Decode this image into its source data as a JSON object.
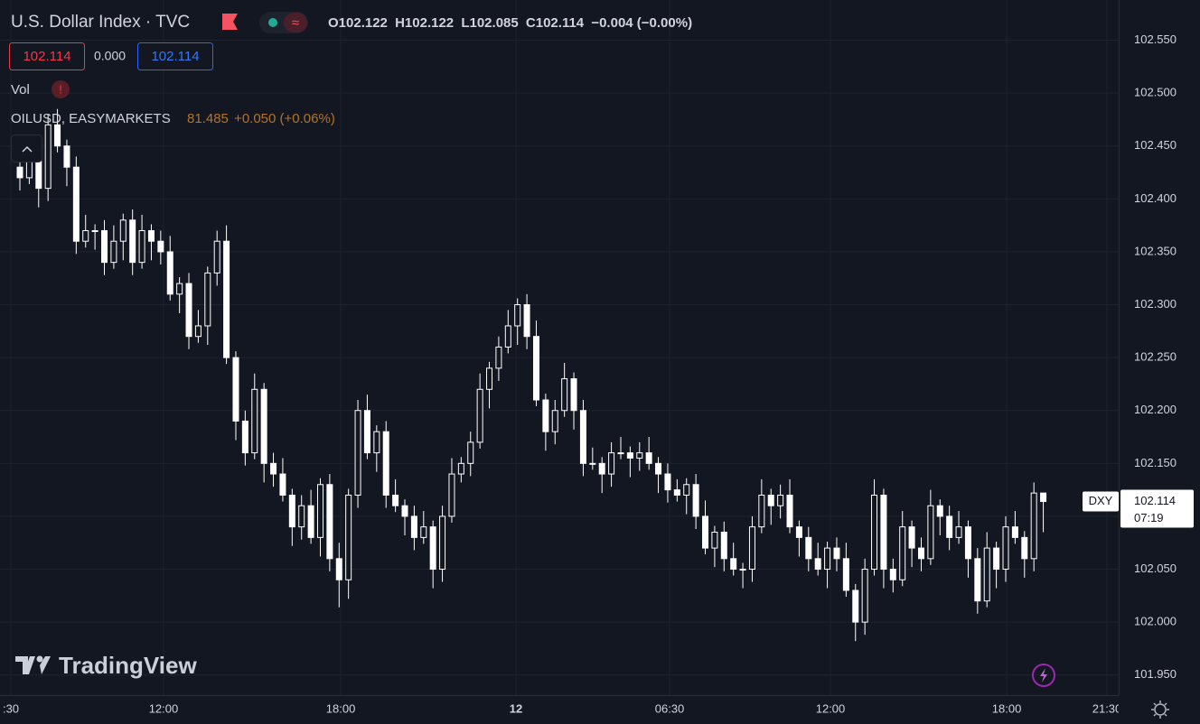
{
  "header": {
    "title": "U.S. Dollar Index · TVC",
    "ohlc_labels": [
      "O",
      "H",
      "L",
      "C"
    ],
    "change": "−0.004 (−0.00%)",
    "spread": "0.000",
    "vol_label": "Vol",
    "overlay_symbol": "OILUSD, EASYMARKETS",
    "overlay_price": "81.485",
    "overlay_change": "+0.050 (+0.06%)",
    "symbol_tag": "DXY",
    "countdown": "07:19",
    "watermark": "TradingView"
  },
  "chart_data": {
    "type": "candlestick",
    "open": [
      102.43,
      102.42,
      102.44,
      102.41,
      102.47,
      102.45,
      102.43,
      102.36,
      102.37,
      102.37,
      102.34,
      102.36,
      102.38,
      102.34,
      102.37,
      102.36,
      102.35,
      102.31,
      102.32,
      102.27,
      102.28,
      102.33,
      102.36,
      102.25,
      102.19,
      102.16,
      102.22,
      102.15,
      102.14,
      102.12,
      102.09,
      102.11,
      102.08,
      102.13,
      102.06,
      102.04,
      102.12,
      102.2,
      102.16,
      102.18,
      102.12,
      102.11,
      102.1,
      102.08,
      102.09,
      102.05,
      102.1,
      102.14,
      102.15,
      102.17,
      102.22,
      102.24,
      102.26,
      102.28,
      102.3,
      102.27,
      102.21,
      102.18,
      102.2,
      102.23,
      102.2,
      102.15,
      102.15,
      102.14,
      102.16,
      102.16,
      102.155,
      102.16,
      102.15,
      102.14,
      102.125,
      102.12,
      102.13,
      102.1,
      102.07,
      102.085,
      102.06,
      102.05,
      102.05,
      102.09,
      102.12,
      102.11,
      102.12,
      102.09,
      102.08,
      102.06,
      102.05,
      102.07,
      102.06,
      102.03,
      102.0,
      102.05,
      102.12,
      102.05,
      102.04,
      102.09,
      102.07,
      102.06,
      102.11,
      102.1,
      102.08,
      102.09,
      102.06,
      102.02,
      102.07,
      102.05,
      102.09,
      102.08,
      102.06,
      102.122
    ],
    "high": [
      102.44,
      102.455,
      102.446,
      102.48,
      102.485,
      102.456,
      102.44,
      102.385,
      102.376,
      102.38,
      102.375,
      102.386,
      102.39,
      102.385,
      102.376,
      102.37,
      102.365,
      102.326,
      102.33,
      102.295,
      102.336,
      102.37,
      102.375,
      102.256,
      102.2,
      102.235,
      102.226,
      102.16,
      102.155,
      102.126,
      102.12,
      102.125,
      102.136,
      102.14,
      102.075,
      102.126,
      102.21,
      102.215,
      102.186,
      102.19,
      102.135,
      102.116,
      102.11,
      102.105,
      102.096,
      102.11,
      102.155,
      102.156,
      102.18,
      102.235,
      102.246,
      102.27,
      102.295,
      102.306,
      102.31,
      102.285,
      102.216,
      102.21,
      102.245,
      102.236,
      102.21,
      102.165,
      102.156,
      102.17,
      102.175,
      102.166,
      102.17,
      102.175,
      102.156,
      102.15,
      102.135,
      102.136,
      102.14,
      102.115,
      102.091,
      102.095,
      102.075,
      102.056,
      102.1,
      102.135,
      102.126,
      102.13,
      102.135,
      102.096,
      102.09,
      102.075,
      102.076,
      102.08,
      102.075,
      102.036,
      102.06,
      102.135,
      102.126,
      102.06,
      102.105,
      102.096,
      102.08,
      102.125,
      102.116,
      102.11,
      102.105,
      102.096,
      102.07,
      102.085,
      102.076,
      102.1,
      102.105,
      102.086,
      102.132,
      102.122
    ],
    "low": [
      102.408,
      102.414,
      102.392,
      102.398,
      102.444,
      102.412,
      102.348,
      102.354,
      102.352,
      102.328,
      102.334,
      102.342,
      102.328,
      102.334,
      102.342,
      102.338,
      102.304,
      102.292,
      102.258,
      102.264,
      102.262,
      102.318,
      102.244,
      102.172,
      102.148,
      102.154,
      102.132,
      102.128,
      102.114,
      102.072,
      102.078,
      102.074,
      102.062,
      102.048,
      102.014,
      102.022,
      102.108,
      102.154,
      102.142,
      102.108,
      102.104,
      102.082,
      102.068,
      102.074,
      102.032,
      102.038,
      102.094,
      102.132,
      102.138,
      102.164,
      102.202,
      102.228,
      102.254,
      102.262,
      102.258,
      102.204,
      102.162,
      102.168,
      102.194,
      102.182,
      102.138,
      102.144,
      102.122,
      102.128,
      102.154,
      102.137,
      102.143,
      102.144,
      102.122,
      102.113,
      102.114,
      102.102,
      102.088,
      102.064,
      102.052,
      102.048,
      102.044,
      102.032,
      102.038,
      102.084,
      102.092,
      102.098,
      102.084,
      102.062,
      102.048,
      102.044,
      102.032,
      102.048,
      102.024,
      101.982,
      101.988,
      102.044,
      102.032,
      102.028,
      102.034,
      102.052,
      102.048,
      102.054,
      102.082,
      102.068,
      102.074,
      102.042,
      102.008,
      102.014,
      102.032,
      102.038,
      102.074,
      102.042,
      102.048,
      102.085
    ],
    "close": [
      102.42,
      102.44,
      102.41,
      102.47,
      102.45,
      102.43,
      102.36,
      102.37,
      102.37,
      102.34,
      102.36,
      102.38,
      102.34,
      102.37,
      102.36,
      102.35,
      102.31,
      102.32,
      102.27,
      102.28,
      102.33,
      102.36,
      102.25,
      102.19,
      102.16,
      102.22,
      102.15,
      102.14,
      102.12,
      102.09,
      102.11,
      102.08,
      102.13,
      102.06,
      102.04,
      102.12,
      102.2,
      102.16,
      102.18,
      102.12,
      102.11,
      102.1,
      102.08,
      102.09,
      102.05,
      102.1,
      102.14,
      102.15,
      102.17,
      102.22,
      102.24,
      102.26,
      102.28,
      102.3,
      102.27,
      102.21,
      102.18,
      102.2,
      102.23,
      102.2,
      102.15,
      102.15,
      102.14,
      102.16,
      102.16,
      102.155,
      102.16,
      102.15,
      102.14,
      102.125,
      102.12,
      102.13,
      102.1,
      102.07,
      102.085,
      102.06,
      102.05,
      102.05,
      102.09,
      102.12,
      102.11,
      102.12,
      102.09,
      102.08,
      102.06,
      102.05,
      102.07,
      102.06,
      102.03,
      102.0,
      102.05,
      102.12,
      102.05,
      102.04,
      102.09,
      102.07,
      102.06,
      102.11,
      102.1,
      102.08,
      102.09,
      102.06,
      102.02,
      102.07,
      102.05,
      102.09,
      102.08,
      102.06,
      102.122,
      102.114
    ],
    "xlim": [
      -2.117,
      117.03
    ],
    "xticks": [
      {
        "value": -0.96,
        "label": ":30"
      },
      {
        "value": 15.3,
        "label": "12:00"
      },
      {
        "value": 34.17,
        "label": "18:00"
      },
      {
        "value": 52.84,
        "label": "12"
      },
      {
        "value": 69.2,
        "label": "06:30"
      },
      {
        "value": 86.33,
        "label": "12:00"
      },
      {
        "value": 105.1,
        "label": "18:00"
      },
      {
        "value": 115.78,
        "label": "21:30"
      }
    ],
    "ylim": [
      101.931,
      102.588
    ],
    "yticks": [
      {
        "value": 102.55,
        "label": "102.550"
      },
      {
        "value": 102.5,
        "label": "102.500"
      },
      {
        "value": 102.45,
        "label": "102.450"
      },
      {
        "value": 102.4,
        "label": "102.400"
      },
      {
        "value": 102.35,
        "label": "102.350"
      },
      {
        "value": 102.3,
        "label": "102.300"
      },
      {
        "value": 102.25,
        "label": "102.250"
      },
      {
        "value": 102.2,
        "label": "102.200"
      },
      {
        "value": 102.15,
        "label": "102.150"
      },
      {
        "value": 102.1,
        "label": "102.100"
      },
      {
        "value": 102.05,
        "label": "102.050"
      },
      {
        "value": 102.0,
        "label": "102.000"
      },
      {
        "value": 101.95,
        "label": "101.950"
      }
    ],
    "grid": true,
    "up_color": "#ffffff",
    "down_color": "#ffffff"
  }
}
